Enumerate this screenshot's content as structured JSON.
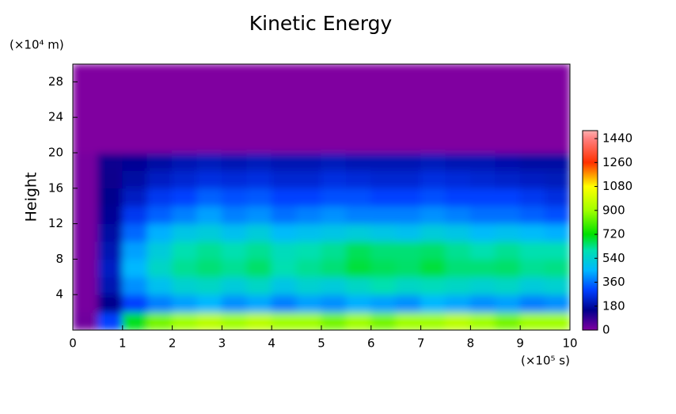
{
  "chart_data": {
    "type": "heatmap",
    "title": "Kinetic Energy",
    "y_label": "Height",
    "y_unit": "(×10⁴ m)",
    "x_unit": "(×10⁵ s)",
    "xlim": [
      0,
      10
    ],
    "ylim": [
      0,
      30
    ],
    "xticks": [
      0,
      1,
      2,
      3,
      4,
      5,
      6,
      7,
      8,
      9,
      10
    ],
    "yticks": [
      4,
      8,
      12,
      16,
      20,
      24,
      28
    ],
    "x_bins": [
      0,
      0.5,
      1,
      1.5,
      2,
      2.5,
      3,
      3.5,
      4,
      4.5,
      5,
      5.5,
      6,
      6.5,
      7,
      7.5,
      8,
      8.5,
      9,
      9.5,
      10
    ],
    "y_bins": [
      0,
      2,
      4,
      6,
      8,
      10,
      12,
      14,
      16,
      18,
      20,
      22,
      24,
      26,
      28,
      30
    ],
    "z": [
      [
        20,
        300,
        700,
        850,
        900,
        950,
        900,
        950,
        900,
        900,
        850,
        900,
        850,
        900,
        900,
        950,
        900,
        850,
        900,
        900
      ],
      [
        10,
        150,
        300,
        380,
        420,
        450,
        400,
        430,
        380,
        420,
        400,
        440,
        420,
        400,
        450,
        430,
        400,
        420,
        380,
        400
      ],
      [
        10,
        200,
        400,
        480,
        540,
        560,
        520,
        560,
        500,
        540,
        520,
        560,
        600,
        560,
        580,
        560,
        540,
        560,
        520,
        540
      ],
      [
        10,
        220,
        450,
        560,
        620,
        640,
        620,
        650,
        600,
        620,
        640,
        680,
        660,
        650,
        680,
        640,
        640,
        650,
        620,
        630
      ],
      [
        10,
        200,
        420,
        520,
        600,
        620,
        600,
        620,
        580,
        600,
        620,
        660,
        640,
        640,
        650,
        620,
        600,
        620,
        600,
        600
      ],
      [
        10,
        180,
        350,
        440,
        500,
        520,
        480,
        520,
        460,
        480,
        500,
        520,
        500,
        480,
        520,
        500,
        460,
        480,
        460,
        440
      ],
      [
        10,
        160,
        280,
        340,
        380,
        420,
        380,
        400,
        360,
        380,
        400,
        380,
        380,
        380,
        400,
        380,
        360,
        360,
        340,
        320
      ],
      [
        10,
        150,
        220,
        280,
        300,
        340,
        320,
        330,
        300,
        300,
        320,
        320,
        300,
        300,
        320,
        300,
        300,
        300,
        280,
        260
      ],
      [
        10,
        140,
        180,
        220,
        240,
        260,
        250,
        260,
        240,
        240,
        260,
        250,
        240,
        240,
        260,
        250,
        240,
        230,
        220,
        210
      ],
      [
        10,
        130,
        160,
        180,
        200,
        210,
        200,
        210,
        200,
        200,
        210,
        200,
        200,
        200,
        210,
        200,
        200,
        190,
        180,
        180
      ],
      [
        0,
        0,
        0,
        0,
        0,
        0,
        0,
        0,
        0,
        0,
        0,
        0,
        0,
        0,
        0,
        0,
        0,
        0,
        0,
        0
      ],
      [
        0,
        0,
        0,
        0,
        0,
        0,
        0,
        0,
        0,
        0,
        0,
        0,
        0,
        0,
        0,
        0,
        0,
        0,
        0,
        0
      ],
      [
        0,
        0,
        0,
        0,
        0,
        0,
        0,
        0,
        0,
        0,
        0,
        0,
        0,
        0,
        0,
        0,
        0,
        0,
        0,
        0
      ],
      [
        0,
        0,
        0,
        0,
        0,
        0,
        0,
        0,
        0,
        0,
        0,
        0,
        0,
        0,
        0,
        0,
        0,
        0,
        0,
        0
      ],
      [
        0,
        0,
        0,
        0,
        0,
        0,
        0,
        0,
        0,
        0,
        0,
        0,
        0,
        0,
        0,
        0,
        0,
        0,
        0,
        0
      ]
    ],
    "colormap": [
      [
        0,
        "#8000a0"
      ],
      [
        150,
        "#00008c"
      ],
      [
        300,
        "#0040ff"
      ],
      [
        450,
        "#00b8ff"
      ],
      [
        600,
        "#00e0b0"
      ],
      [
        720,
        "#00e000"
      ],
      [
        900,
        "#a0ff00"
      ],
      [
        1080,
        "#ffff00"
      ],
      [
        1260,
        "#ff3000"
      ],
      [
        1440,
        "#ff8080"
      ],
      [
        1500,
        "#ffb0b0"
      ]
    ],
    "clim": [
      0,
      1500
    ],
    "cticks": [
      0,
      180,
      360,
      540,
      720,
      900,
      1080,
      1260,
      1440
    ]
  }
}
